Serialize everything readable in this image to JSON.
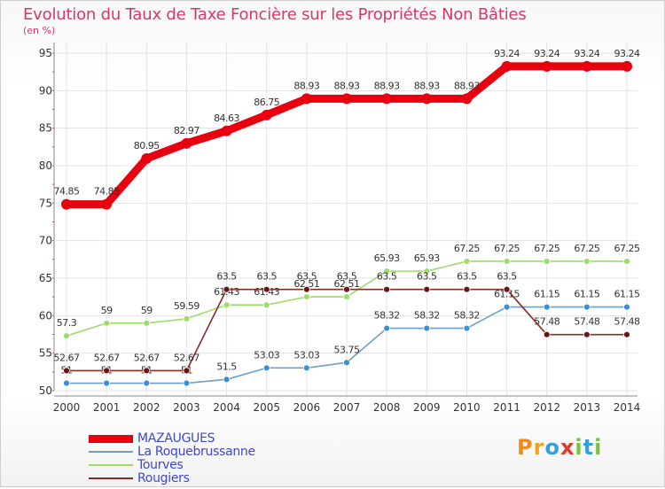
{
  "title": "Evolution du Taux de Taxe Foncière sur les Propriétés Non Bâties",
  "unit": "(en %)",
  "brand": {
    "letters": [
      "P",
      "r",
      "o",
      "x",
      "i",
      "t",
      "i"
    ],
    "colors": [
      "#f28a1a",
      "#f2a21a",
      "#34a0e0",
      "#e23b2e",
      "#7cc242",
      "#34a0e0",
      "#7cc242"
    ]
  },
  "chart_data": {
    "type": "line",
    "title": "Evolution du Taux de Taxe Foncière sur les Propriétés Non Bâties",
    "ylabel": "(en %)",
    "xlabel": "",
    "ylim": [
      50,
      95
    ],
    "yticks": [
      50,
      55,
      60,
      65,
      70,
      75,
      80,
      85,
      90,
      95
    ],
    "categories": [
      "2000",
      "2001",
      "2002",
      "2003",
      "2004",
      "2005",
      "2006",
      "2007",
      "2008",
      "2009",
      "2010",
      "2011",
      "2012",
      "2013",
      "2014"
    ],
    "series": [
      {
        "name": "MAZAUGUES",
        "color": "#e8000e",
        "marker": "#e8000e",
        "values": [
          74.85,
          74.85,
          80.95,
          82.97,
          84.63,
          86.75,
          88.93,
          88.93,
          88.93,
          88.93,
          88.93,
          93.24,
          93.24,
          93.24,
          93.24
        ],
        "labels": [
          "74.85",
          "74.85",
          "80.95",
          "82.97",
          "84.63",
          "86.75",
          "88.93",
          "88.93",
          "88.93",
          "88.93",
          "88.93",
          "93.24",
          "93.24",
          "93.24",
          "93.24"
        ]
      },
      {
        "name": "La Roquebrussanne",
        "color": "#6f9ec6",
        "marker": "#3c8fd0",
        "values": [
          51,
          51,
          51,
          51,
          51.5,
          53.03,
          53.03,
          53.75,
          58.32,
          58.32,
          58.32,
          61.15,
          61.15,
          61.15,
          61.15
        ],
        "labels": [
          "51",
          "51",
          "51",
          "51",
          "51.5",
          "53.03",
          "53.03",
          "53.75",
          "58.32",
          "58.32",
          "58.32",
          "61.15",
          "61.15",
          "61.15",
          "61.15"
        ]
      },
      {
        "name": "Tourves",
        "color": "#9ddc6a",
        "marker": "#9ddc6a",
        "values": [
          57.3,
          59,
          59,
          59.59,
          61.43,
          61.43,
          62.51,
          62.51,
          65.93,
          65.93,
          67.25,
          67.25,
          67.25,
          67.25,
          67.25
        ],
        "labels": [
          "57.3",
          "59",
          "59",
          "59.59",
          "61.43",
          "61.43",
          "62.51",
          "62.51",
          "65.93",
          "65.93",
          "67.25",
          "67.25",
          "67.25",
          "67.25",
          "67.25"
        ]
      },
      {
        "name": "Rougiers",
        "color": "#8a2a2a",
        "marker": "#6a1515",
        "values": [
          52.67,
          52.67,
          52.67,
          52.67,
          63.5,
          63.5,
          63.5,
          63.5,
          63.5,
          63.5,
          63.5,
          63.5,
          57.48,
          57.48,
          57.48
        ],
        "labels": [
          "52.67",
          "52.67",
          "52.67",
          "52.67",
          "63.5",
          "63.5",
          "63.5",
          "63.5",
          "63.5",
          "63.5",
          "63.5",
          "63.5",
          "57.48",
          "57.48",
          "57.48"
        ]
      }
    ],
    "grid": true,
    "legend": "bottom-left"
  }
}
